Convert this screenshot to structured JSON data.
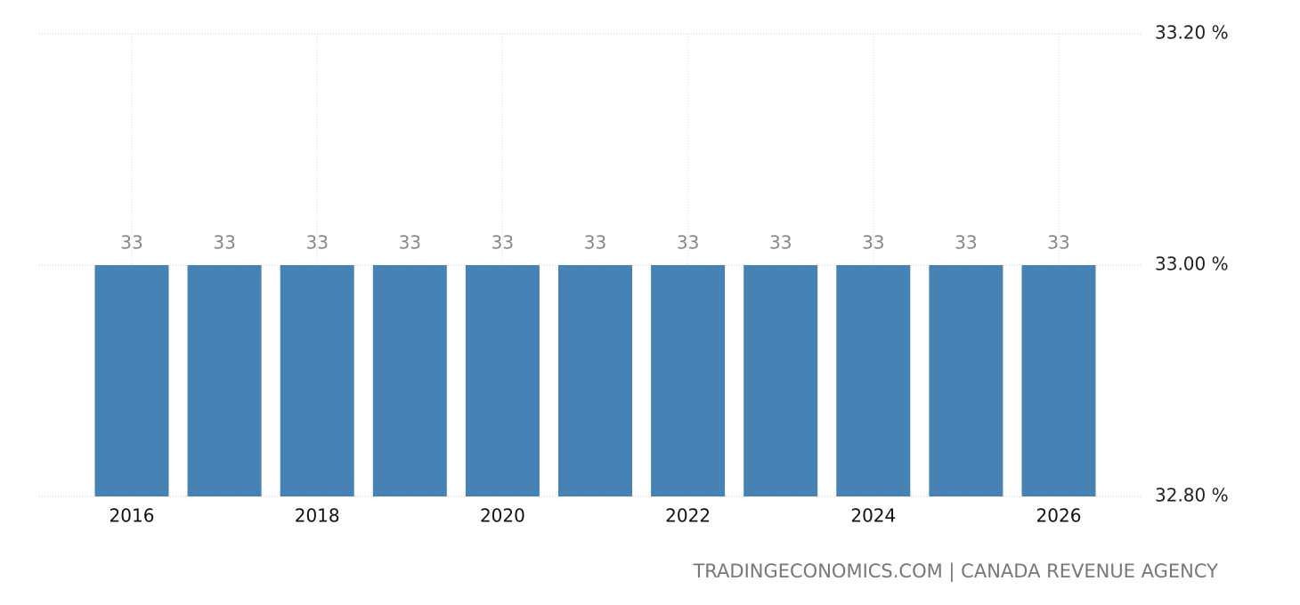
{
  "chart_data": {
    "type": "bar",
    "categories": [
      "2016",
      null,
      "2018",
      null,
      "2020",
      null,
      "2022",
      null,
      "2024",
      null,
      "2026"
    ],
    "values": [
      33,
      33,
      33,
      33,
      33,
      33,
      33,
      33,
      33,
      33,
      33
    ],
    "color": "#4682b4",
    "ylim": [
      32.8,
      33.2
    ],
    "yticks": [
      {
        "value": 32.8,
        "label": "32.80 %"
      },
      {
        "value": 33,
        "label": "33.00 %"
      },
      {
        "value": 33.2,
        "label": "33.20 %"
      }
    ],
    "grid": true,
    "source": "TRADINGECONOMICS.COM | CANADA REVENUE AGENCY"
  }
}
